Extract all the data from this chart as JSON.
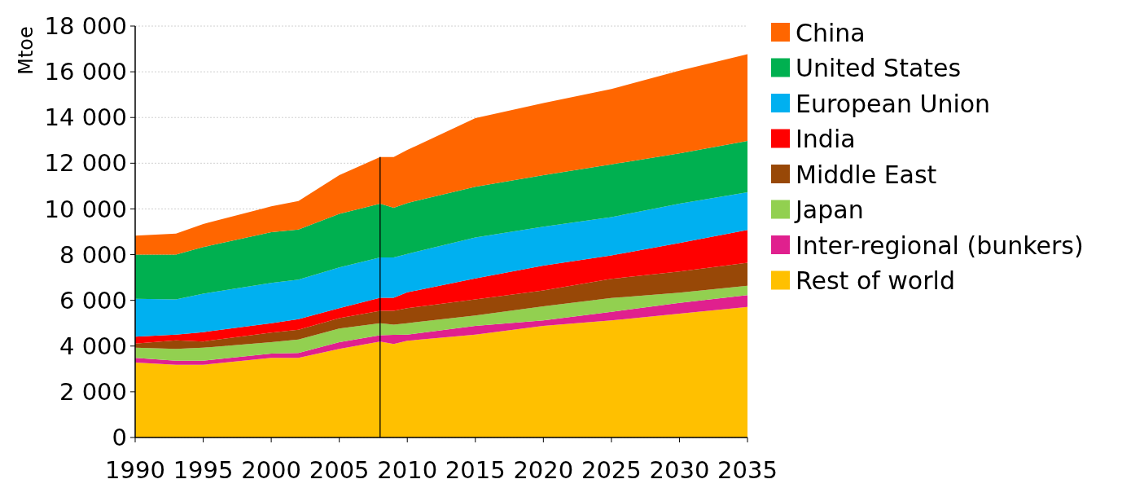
{
  "chart_data": {
    "type": "area",
    "stacked": true,
    "ylabel": "Mtoe",
    "x": [
      1990,
      1993,
      1995,
      2000,
      2002,
      2005,
      2008,
      2009,
      2010,
      2015,
      2020,
      2025,
      2030,
      2035
    ],
    "series": [
      {
        "name": "Rest of world",
        "color": "#ffc000",
        "values": [
          3280,
          3180,
          3180,
          3480,
          3480,
          3880,
          4200,
          4090,
          4230,
          4500,
          4880,
          5120,
          5420,
          5710
        ]
      },
      {
        "name": "Inter-regional (bunkers)",
        "color": "#e0208e",
        "values": [
          200,
          180,
          180,
          190,
          220,
          290,
          270,
          400,
          270,
          380,
          240,
          380,
          470,
          520
        ]
      },
      {
        "name": "Japan",
        "color": "#92d050",
        "values": [
          450,
          520,
          570,
          500,
          590,
          600,
          530,
          450,
          500,
          460,
          620,
          600,
          450,
          410
        ]
      },
      {
        "name": "Middle East",
        "color": "#984807",
        "values": [
          180,
          370,
          270,
          420,
          420,
          450,
          540,
          600,
          660,
          700,
          690,
          840,
          920,
          1010
        ]
      },
      {
        "name": "India",
        "color": "#ff0000",
        "values": [
          300,
          250,
          410,
          410,
          470,
          440,
          570,
          570,
          690,
          920,
          1090,
          1030,
          1250,
          1430
        ]
      },
      {
        "name": "European Union",
        "color": "#00b0f0",
        "values": [
          1660,
          1540,
          1680,
          1760,
          1730,
          1780,
          1770,
          1770,
          1680,
          1790,
          1700,
          1670,
          1720,
          1650
        ]
      },
      {
        "name": "United States",
        "color": "#00b050",
        "values": [
          1930,
          1960,
          2040,
          2220,
          2190,
          2340,
          2350,
          2170,
          2230,
          2220,
          2260,
          2310,
          2200,
          2240
        ]
      },
      {
        "name": "China",
        "color": "#ff6600",
        "values": [
          830,
          920,
          1010,
          1130,
          1250,
          1700,
          2040,
          2220,
          2320,
          3000,
          3150,
          3300,
          3620,
          3800
        ]
      }
    ],
    "xlim": [
      1990,
      2035
    ],
    "xticks": [
      1990,
      1995,
      2000,
      2005,
      2010,
      2015,
      2020,
      2025,
      2030,
      2035
    ],
    "ylim": [
      0,
      18000
    ],
    "yticks": [
      0,
      {
        "value": 2000,
        "label": "2 000"
      },
      {
        "value": 4000,
        "label": "4 000"
      },
      {
        "value": 6000,
        "label": "6 000"
      },
      {
        "value": 8000,
        "label": "8 000"
      },
      {
        "value": 10000,
        "label": "10 000"
      },
      {
        "value": 12000,
        "label": "12 000"
      },
      {
        "value": 14000,
        "label": "14 000"
      },
      {
        "value": 16000,
        "label": "16 000"
      },
      {
        "value": 18000,
        "label": "18 000"
      }
    ],
    "grid": "y",
    "legend": "right",
    "ref_lines": [
      {
        "axis": "x",
        "value": 2008,
        "color": "#000000"
      }
    ]
  }
}
